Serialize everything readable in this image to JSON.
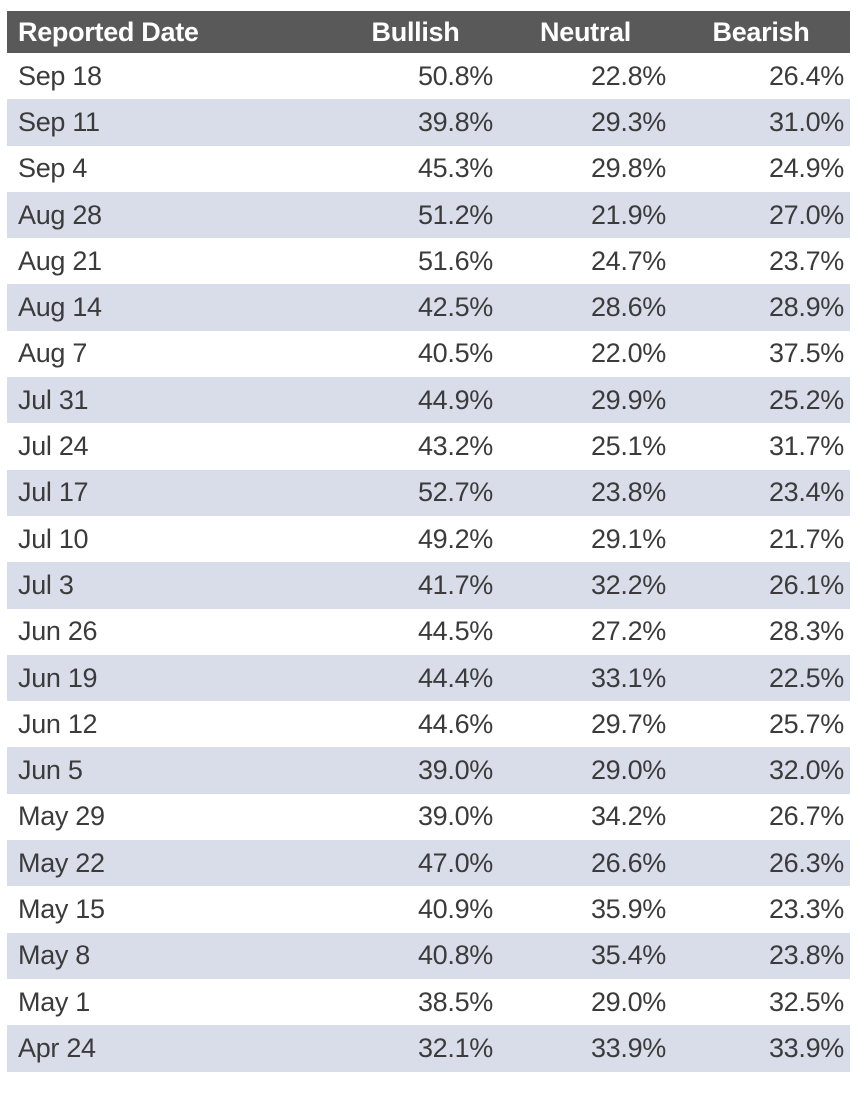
{
  "colors": {
    "header_bg": "#595959",
    "header_text": "#ffffff",
    "row_bg": "#ffffff",
    "row_alt_bg": "#d8dde9",
    "body_text": "#3b3b3b"
  },
  "chart_data": {
    "type": "table",
    "columns": [
      "Reported Date",
      "Bullish",
      "Neutral",
      "Bearish"
    ],
    "unit": "%",
    "rows": [
      [
        "Sep 18",
        "50.8%",
        "22.8%",
        "26.4%"
      ],
      [
        "Sep 11",
        "39.8%",
        "29.3%",
        "31.0%"
      ],
      [
        "Sep 4",
        "45.3%",
        "29.8%",
        "24.9%"
      ],
      [
        "Aug 28",
        "51.2%",
        "21.9%",
        "27.0%"
      ],
      [
        "Aug 21",
        "51.6%",
        "24.7%",
        "23.7%"
      ],
      [
        "Aug 14",
        "42.5%",
        "28.6%",
        "28.9%"
      ],
      [
        "Aug 7",
        "40.5%",
        "22.0%",
        "37.5%"
      ],
      [
        "Jul 31",
        "44.9%",
        "29.9%",
        "25.2%"
      ],
      [
        "Jul 24",
        "43.2%",
        "25.1%",
        "31.7%"
      ],
      [
        "Jul 17",
        "52.7%",
        "23.8%",
        "23.4%"
      ],
      [
        "Jul 10",
        "49.2%",
        "29.1%",
        "21.7%"
      ],
      [
        "Jul 3",
        "41.7%",
        "32.2%",
        "26.1%"
      ],
      [
        "Jun 26",
        "44.5%",
        "27.2%",
        "28.3%"
      ],
      [
        "Jun 19",
        "44.4%",
        "33.1%",
        "22.5%"
      ],
      [
        "Jun 12",
        "44.6%",
        "29.7%",
        "25.7%"
      ],
      [
        "Jun 5",
        "39.0%",
        "29.0%",
        "32.0%"
      ],
      [
        "May 29",
        "39.0%",
        "34.2%",
        "26.7%"
      ],
      [
        "May 22",
        "47.0%",
        "26.6%",
        "26.3%"
      ],
      [
        "May 15",
        "40.9%",
        "35.9%",
        "23.3%"
      ],
      [
        "May 8",
        "40.8%",
        "35.4%",
        "23.8%"
      ],
      [
        "May 1",
        "38.5%",
        "29.0%",
        "32.5%"
      ],
      [
        "Apr 24",
        "32.1%",
        "33.9%",
        "33.9%"
      ]
    ]
  }
}
